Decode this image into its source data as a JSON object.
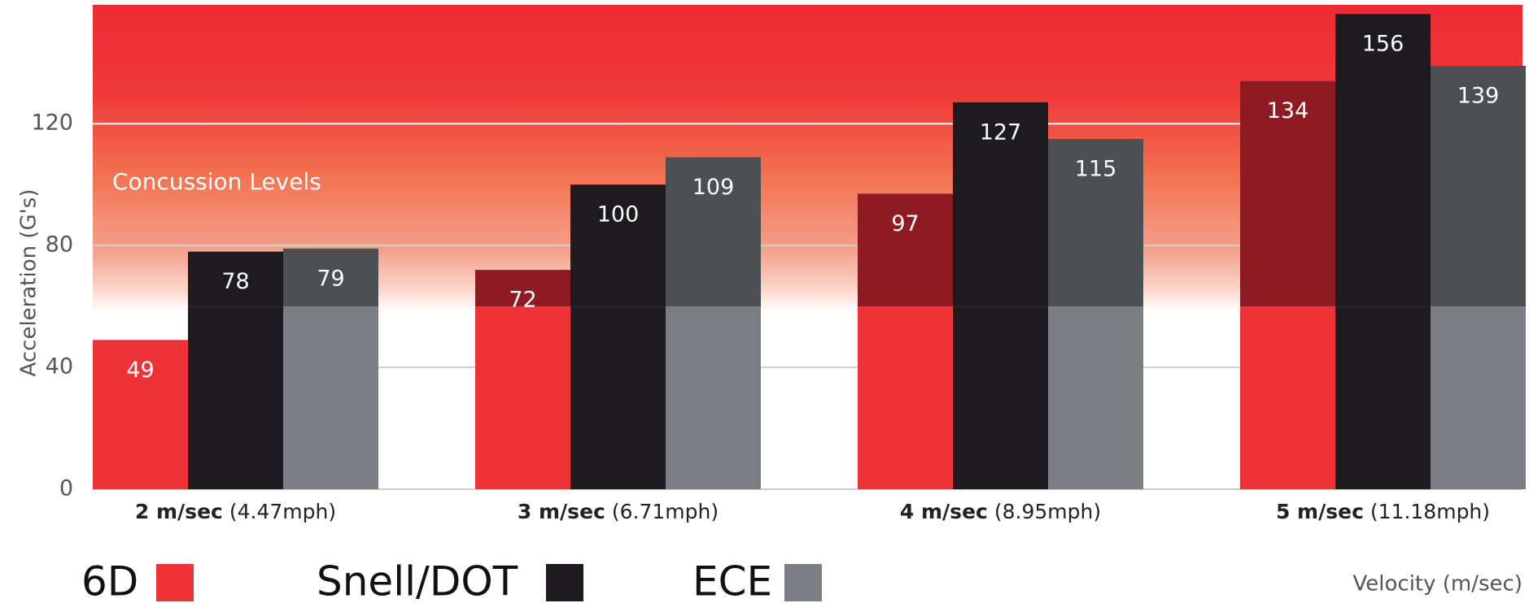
{
  "chart_data": {
    "type": "bar",
    "y_label": "Acceleration (G's)",
    "x_label": "Velocity (m/sec)",
    "categories": [
      "2 m/sec",
      "3 m/sec",
      "4 m/sec",
      "5 m/sec"
    ],
    "category_notes": [
      "(4.47mph)",
      "(6.71mph)",
      "(8.95mph)",
      "(11.18mph)"
    ],
    "series": [
      {
        "name": "6D",
        "color": "#ee3338",
        "concussion_color": "#8e1b22",
        "values": [
          49,
          72,
          97,
          134
        ]
      },
      {
        "name": "Snell/DOT",
        "color": "#1d1b20",
        "concussion_color": "#1d1b20",
        "values": [
          78,
          100,
          127,
          156
        ]
      },
      {
        "name": "ECE",
        "color": "#7b7f83",
        "concussion_color": "#4d5053",
        "values": [
          79,
          109,
          115,
          139
        ]
      }
    ],
    "ylim": [
      0,
      159
    ],
    "yticks": [
      0,
      40,
      80,
      120
    ],
    "grid": true,
    "concussion": {
      "text": "Concussion Levels",
      "from": 60
    }
  }
}
